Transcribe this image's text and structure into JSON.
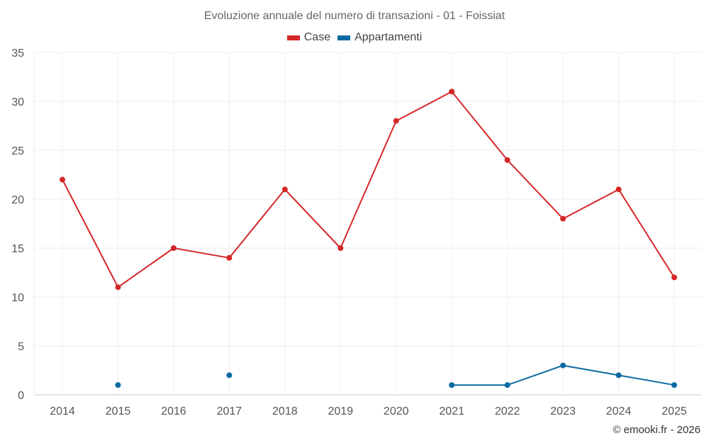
{
  "chart_data": {
    "type": "line",
    "title": "Evoluzione annuale del numero di transazioni - 01 - Foissiat",
    "categories": [
      "2014",
      "2015",
      "2016",
      "2017",
      "2018",
      "2019",
      "2020",
      "2021",
      "2022",
      "2023",
      "2024",
      "2025"
    ],
    "series": [
      {
        "name": "Case",
        "color": "#d62728",
        "values": [
          22,
          11,
          15,
          14,
          21,
          15,
          28,
          31,
          24,
          18,
          21,
          12
        ]
      },
      {
        "name": "Appartamenti",
        "color": "#0b6aa2",
        "values": [
          null,
          1,
          null,
          2,
          null,
          null,
          null,
          1,
          1,
          3,
          2,
          1
        ]
      }
    ],
    "yticks": [
      0,
      5,
      10,
      15,
      20,
      25,
      30,
      35
    ],
    "ylim": [
      0,
      35
    ],
    "xlabel": "",
    "ylabel": "",
    "grid": true,
    "legend_position": "top-center"
  },
  "credit": "© emooki.fr - 2026"
}
